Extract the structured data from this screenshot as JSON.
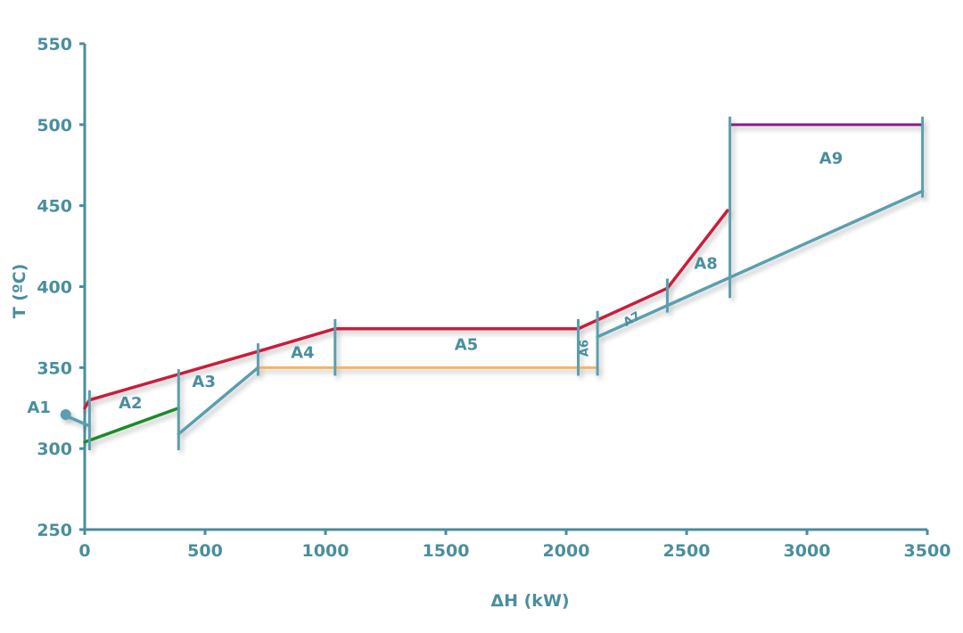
{
  "chart_data": {
    "type": "line",
    "title": "",
    "xlabel": "ΔH (kW)",
    "ylabel": "T (ºC)",
    "xlim": [
      0,
      3500
    ],
    "ylim": [
      250,
      550
    ],
    "xticks": [
      "0",
      "500",
      "1000",
      "1500",
      "2000",
      "2500",
      "3000",
      "3500"
    ],
    "yticks": [
      "250",
      "300",
      "350",
      "400",
      "450",
      "500",
      "550"
    ],
    "grid": false,
    "legend": "none",
    "colors": {
      "axis": "#4a8e9e",
      "cold_composite": "#5a9fb0",
      "hot_composite": "#cc1f3a",
      "segment_green": "#1f8a2a",
      "segment_orange": "#f5b463",
      "segment_purple": "#8a1f8a"
    },
    "series": [
      {
        "key": "hot",
        "points": [
          [
            0,
            325
          ],
          [
            20,
            330
          ],
          [
            720,
            360
          ],
          [
            1040,
            374
          ],
          [
            2050,
            374
          ],
          [
            2420,
            399
          ],
          [
            2670,
            447
          ]
        ]
      },
      {
        "key": "cold_a",
        "points": [
          [
            20,
            314
          ],
          [
            -90,
            321
          ]
        ]
      },
      {
        "key": "cold_b",
        "points": [
          [
            390,
            309
          ],
          [
            720,
            350
          ]
        ]
      },
      {
        "key": "cold_c",
        "points": [
          [
            2130,
            369
          ],
          [
            3480,
            459
          ]
        ]
      },
      {
        "key": "green",
        "points": [
          [
            0,
            304
          ],
          [
            390,
            325
          ]
        ]
      },
      {
        "key": "orange",
        "points": [
          [
            720,
            350
          ],
          [
            2130,
            350
          ]
        ]
      },
      {
        "key": "purple",
        "points": [
          [
            2680,
            500
          ],
          [
            3480,
            500
          ]
        ]
      }
    ],
    "dividers": [
      {
        "x": 20,
        "y1": 299,
        "y2": 336
      },
      {
        "x": 390,
        "y1": 299,
        "y2": 349
      },
      {
        "x": 720,
        "y1": 345,
        "y2": 365
      },
      {
        "x": 1040,
        "y1": 345,
        "y2": 380
      },
      {
        "x": 2050,
        "y1": 345,
        "y2": 380
      },
      {
        "x": 2130,
        "y1": 345,
        "y2": 385
      },
      {
        "x": 2420,
        "y1": 384,
        "y2": 405
      },
      {
        "x": 2680,
        "y1": 393,
        "y2": 505
      },
      {
        "x": 3480,
        "y1": 455,
        "y2": 505
      }
    ],
    "annotations": [
      {
        "text": "A1",
        "x": -190,
        "y": 322,
        "rotate": 0,
        "small": false
      },
      {
        "text": "A2",
        "x": 190,
        "y": 325,
        "rotate": 0,
        "small": false
      },
      {
        "text": "A3",
        "x": 495,
        "y": 338,
        "rotate": 0,
        "small": false
      },
      {
        "text": "A4",
        "x": 905,
        "y": 356,
        "rotate": 0,
        "small": false
      },
      {
        "text": "A5",
        "x": 1585,
        "y": 361,
        "rotate": 0,
        "small": false
      },
      {
        "text": "A6",
        "x": 2090,
        "y": 362,
        "rotate": -90,
        "small": true
      },
      {
        "text": "A7",
        "x": 2280,
        "y": 378,
        "rotate": -30,
        "small": true
      },
      {
        "text": "A8",
        "x": 2580,
        "y": 411,
        "rotate": 0,
        "small": false
      },
      {
        "text": "A9",
        "x": 3100,
        "y": 476,
        "rotate": 0,
        "small": false
      }
    ],
    "pointer": {
      "from": [
        20,
        314
      ],
      "to": [
        -90,
        321
      ]
    }
  }
}
